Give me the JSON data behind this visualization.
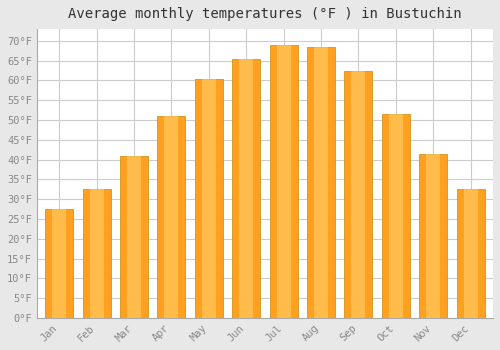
{
  "title": "Average monthly temperatures (°F ) in Bustuchin",
  "months": [
    "Jan",
    "Feb",
    "Mar",
    "Apr",
    "May",
    "Jun",
    "Jul",
    "Aug",
    "Sep",
    "Oct",
    "Nov",
    "Dec"
  ],
  "values": [
    27.5,
    32.5,
    41,
    51,
    60.5,
    65.5,
    69,
    68.5,
    62.5,
    51.5,
    41.5,
    32.5
  ],
  "bar_color_top": "#FFD060",
  "bar_color_bottom": "#FFA020",
  "bar_edge_color": "#CC8800",
  "ylim": [
    0,
    73
  ],
  "yticks": [
    0,
    5,
    10,
    15,
    20,
    25,
    30,
    35,
    40,
    45,
    50,
    55,
    60,
    65,
    70
  ],
  "ytick_labels": [
    "0°F",
    "5°F",
    "10°F",
    "15°F",
    "20°F",
    "25°F",
    "30°F",
    "35°F",
    "40°F",
    "45°F",
    "50°F",
    "55°F",
    "60°F",
    "65°F",
    "70°F"
  ],
  "plot_bg_color": "#ffffff",
  "fig_bg_color": "#e8e8e8",
  "grid_color": "#cccccc",
  "title_fontsize": 10,
  "tick_fontsize": 7.5,
  "tick_color": "#888888",
  "font_family": "monospace",
  "bar_width": 0.75
}
